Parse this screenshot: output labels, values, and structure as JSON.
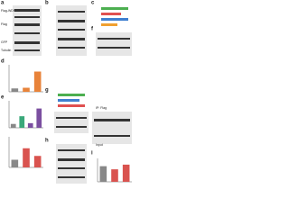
{
  "panel_labels": [
    "a",
    "b",
    "c",
    "d",
    "e",
    "f",
    "g",
    "h",
    "i"
  ],
  "blot_labels": [
    "Flag-WDR",
    "Flag",
    "GFP",
    "Tubulin",
    "Input",
    "IP: Flag"
  ],
  "chart_data": [
    {
      "type": "bar",
      "values": [
        1,
        1.2,
        6
      ],
      "colors": [
        "#888888",
        "#e8833a",
        "#e8833a"
      ],
      "ylim": [
        0,
        8
      ]
    },
    {
      "type": "bar",
      "values": [
        1,
        3,
        1.2,
        5
      ],
      "colors": [
        "#888888",
        "#3aa87a",
        "#7b4fa0",
        "#7b4fa0"
      ],
      "ylim": [
        0,
        7
      ]
    },
    {
      "type": "bar",
      "values": [
        1,
        2.5,
        1.5
      ],
      "colors": [
        "#888888",
        "#d9534f",
        "#d9534f"
      ],
      "ylim": [
        0,
        4
      ]
    },
    {
      "type": "bar",
      "values": [
        1,
        0.8,
        1.1
      ],
      "colors": [
        "#888888",
        "#d9534f",
        "#d9534f"
      ],
      "ylim": [
        0,
        1.5
      ]
    }
  ]
}
